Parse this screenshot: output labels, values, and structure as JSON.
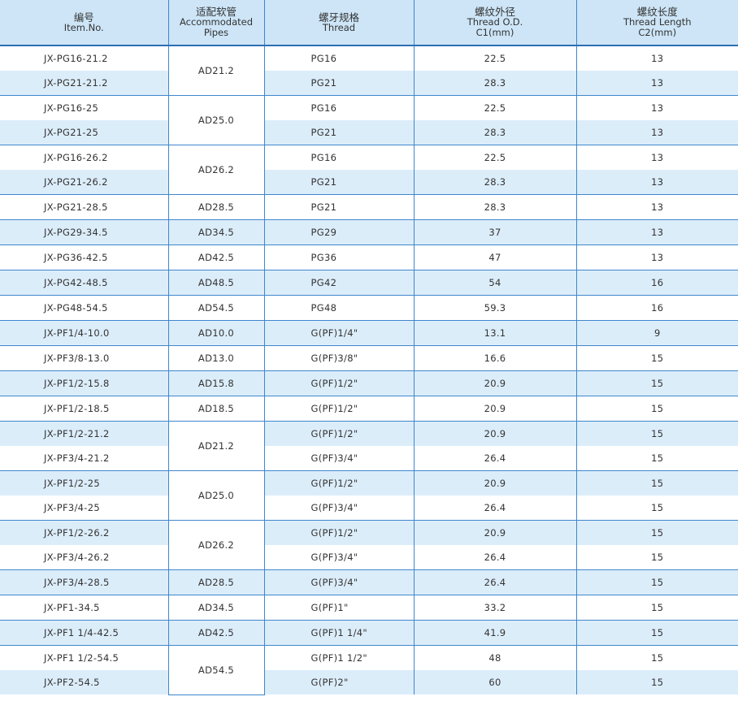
{
  "header": [
    {
      "lines": [
        "编号",
        "Item.No."
      ]
    },
    {
      "lines": [
        "适配软管",
        "Accommodated Pipes"
      ]
    },
    {
      "lines": [
        "螺牙规格",
        "Thread"
      ]
    },
    {
      "lines": [
        "螺纹外径",
        "Thread O.D.",
        "C1(mm)"
      ]
    },
    {
      "lines": [
        "螺纹长度",
        "Thread Length",
        "C2(mm)"
      ]
    }
  ],
  "pipes": [
    {
      "text": "AD21.2",
      "rows": 2
    },
    {
      "text": "AD25.0",
      "rows": 2
    },
    {
      "text": "AD26.2",
      "rows": 2
    },
    {
      "text": "AD28.5",
      "rows": 1
    },
    {
      "text": "AD34.5",
      "rows": 1
    },
    {
      "text": "AD42.5",
      "rows": 1
    },
    {
      "text": "AD48.5",
      "rows": 1
    },
    {
      "text": "AD54.5",
      "rows": 1
    },
    {
      "text": "AD10.0",
      "rows": 1
    },
    {
      "text": "AD13.0",
      "rows": 1
    },
    {
      "text": "AD15.8",
      "rows": 1
    },
    {
      "text": "AD18.5",
      "rows": 1
    },
    {
      "text": "AD21.2",
      "rows": 2
    },
    {
      "text": "AD25.0",
      "rows": 2
    },
    {
      "text": "AD26.2",
      "rows": 2
    },
    {
      "text": "AD28.5",
      "rows": 1
    },
    {
      "text": "AD34.5",
      "rows": 1
    },
    {
      "text": "AD42.5",
      "rows": 1
    },
    {
      "text": "AD54.5",
      "rows": 2
    }
  ],
  "rows": [
    {
      "item": "JX-PG16-21.2",
      "thread": "PG16",
      "od": "22.5",
      "length": "13"
    },
    {
      "item": "JX-PG21-21.2",
      "thread": "PG21",
      "od": "28.3",
      "length": "13"
    },
    {
      "item": "JX-PG16-25",
      "thread": "PG16",
      "od": "22.5",
      "length": "13"
    },
    {
      "item": "JX-PG21-25",
      "thread": "PG21",
      "od": "28.3",
      "length": "13"
    },
    {
      "item": "JX-PG16-26.2",
      "thread": "PG16",
      "od": "22.5",
      "length": "13"
    },
    {
      "item": "JX-PG21-26.2",
      "thread": "PG21",
      "od": "28.3",
      "length": "13"
    },
    {
      "item": "JX-PG21-28.5",
      "thread": "PG21",
      "od": "28.3",
      "length": "13"
    },
    {
      "item": "JX-PG29-34.5",
      "thread": "PG29",
      "od": "37",
      "length": "13"
    },
    {
      "item": "JX-PG36-42.5",
      "thread": "PG36",
      "od": "47",
      "length": "13"
    },
    {
      "item": "JX-PG42-48.5",
      "thread": "PG42",
      "od": "54",
      "length": "16"
    },
    {
      "item": "JX-PG48-54.5",
      "thread": "PG48",
      "od": "59.3",
      "length": "16"
    },
    {
      "item": "JX-PF1/4-10.0",
      "thread": "G(PF)1/4\"",
      "od": "13.1",
      "length": "9"
    },
    {
      "item": "JX-PF3/8-13.0",
      "thread": "G(PF)3/8\"",
      "od": "16.6",
      "length": "15"
    },
    {
      "item": "JX-PF1/2-15.8",
      "thread": "G(PF)1/2\"",
      "od": "20.9",
      "length": "15"
    },
    {
      "item": "JX-PF1/2-18.5",
      "thread": "G(PF)1/2\"",
      "od": "20.9",
      "length": "15"
    },
    {
      "item": "JX-PF1/2-21.2",
      "thread": "G(PF)1/2\"",
      "od": "20.9",
      "length": "15"
    },
    {
      "item": "JX-PF3/4-21.2",
      "thread": "G(PF)3/4\"",
      "od": "26.4",
      "length": "15"
    },
    {
      "item": "JX-PF1/2-25",
      "thread": "G(PF)1/2\"",
      "od": "20.9",
      "length": "15"
    },
    {
      "item": "JX-PF3/4-25",
      "thread": "G(PF)3/4\"",
      "od": "26.4",
      "length": "15"
    },
    {
      "item": "JX-PF1/2-26.2",
      "thread": "G(PF)1/2\"",
      "od": "20.9",
      "length": "15"
    },
    {
      "item": "JX-PF3/4-26.2",
      "thread": "G(PF)3/4\"",
      "od": "26.4",
      "length": "15"
    },
    {
      "item": "JX-PF3/4-28.5",
      "thread": "G(PF)3/4\"",
      "od": "26.4",
      "length": "15"
    },
    {
      "item": "JX-PF1-34.5",
      "thread": "G(PF)1\"",
      "od": "33.2",
      "length": "15"
    },
    {
      "item": "JX-PF1 1/4-42.5",
      "thread": "G(PF)1 1/4\"",
      "od": "41.9",
      "length": "15"
    },
    {
      "item": "JX-PF1 1/2-54.5",
      "thread": "G(PF)1 1/2\"",
      "od": "48",
      "length": "15"
    },
    {
      "item": "JX-PF2-54.5",
      "thread": "G(PF)2\"",
      "od": "60",
      "length": "15"
    }
  ]
}
